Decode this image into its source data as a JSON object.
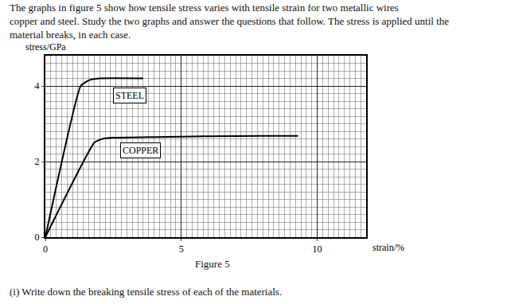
{
  "intro": [
    "The graphs in figure 5 show how tensile stress varies with tensile strain for two metallic wires",
    "copper and steel. Study the two graphs and answer the questions that follow. The stress is applied until the",
    "material breaks, in each case."
  ],
  "caption": "Figure 5",
  "question": "(i) Write down the breaking tensile stress of each of the materials.",
  "chart_data": {
    "type": "line",
    "x_label": "strain/%",
    "y_label": "stress/GPa",
    "series": [
      {
        "name": "STEEL",
        "color": "#000000",
        "x": [
          0,
          1.3,
          1.6,
          2.0,
          3.6
        ],
        "values": [
          0,
          4.0,
          4.15,
          4.2,
          4.2
        ]
      },
      {
        "name": "COPPER",
        "color": "#000000",
        "x": [
          0,
          1.8,
          2.1,
          2.5,
          4,
          6,
          8,
          9.3
        ],
        "values": [
          0,
          2.5,
          2.6,
          2.63,
          2.65,
          2.67,
          2.68,
          2.68
        ]
      }
    ],
    "annotations": [
      {
        "text": "STEEL",
        "x": 3.1,
        "y": 3.75
      },
      {
        "text": "COPPER",
        "x": 3.5,
        "y": 2.3
      }
    ],
    "xlim": [
      0,
      11.8
    ],
    "ylim": [
      0,
      4.8
    ],
    "xticks": [
      0,
      5,
      10
    ],
    "yticks": [
      0,
      2,
      4
    ],
    "grid": true
  }
}
